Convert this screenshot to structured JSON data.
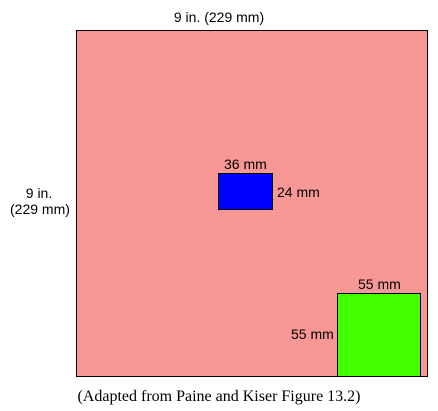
{
  "diagram": {
    "sheet": {
      "width_label": "9 in. (229 mm)",
      "height_label_line1": "9 in.",
      "height_label_line2": "(229 mm)",
      "color": "#f89896"
    },
    "blue_rectangle": {
      "width_label": "36 mm",
      "height_label": "24 mm",
      "color": "#0000ff"
    },
    "green_rectangle": {
      "width_label": "55 mm",
      "height_label": "55 mm",
      "color": "#44ff00"
    },
    "caption": "(Adapted from Paine and Kiser Figure 13.2)"
  }
}
